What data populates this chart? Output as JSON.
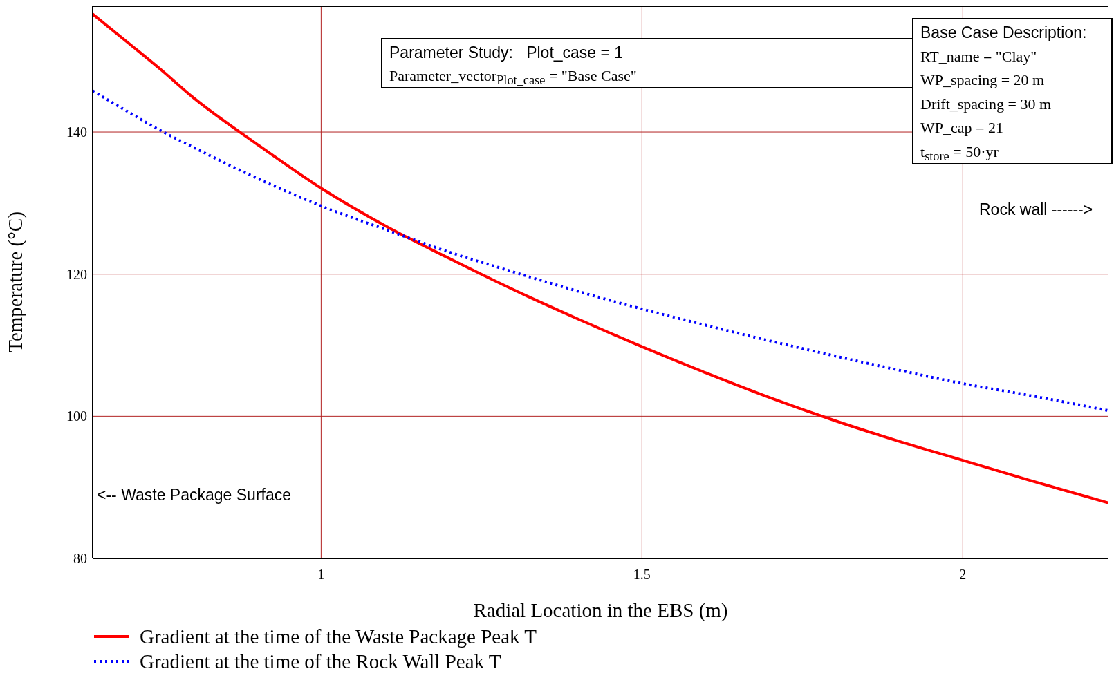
{
  "chart_data": {
    "type": "line",
    "xlabel": "Radial Location in the EBS (m)",
    "ylabel": "Temperature (°C)",
    "x": [
      0.644,
      0.7,
      0.75,
      0.8,
      0.9,
      1,
      1.1,
      1.2,
      1.3,
      1.4,
      1.5,
      1.6,
      1.7,
      1.8,
      1.9,
      2,
      2.1,
      2.227
    ],
    "series": [
      {
        "name": "Gradient at the time of the Waste Package Peak T",
        "color": "#ff0000",
        "line_style": "solid",
        "values": [
          156.6,
          152.5,
          148.8,
          144.9,
          138.3,
          132.1,
          126.8,
          122.2,
          117.8,
          113.7,
          109.8,
          106.1,
          102.6,
          99.4,
          96.5,
          93.8,
          91.1,
          87.8
        ]
      },
      {
        "name": "Gradient at the time of the Rock Wall Peak T",
        "color": "#0000ff",
        "line_style": "dotted",
        "values": [
          145.8,
          142.8,
          140.2,
          137.9,
          133.5,
          129.6,
          126.3,
          123.1,
          120.3,
          117.6,
          115.1,
          112.8,
          110.6,
          108.5,
          106.5,
          104.6,
          103.0,
          100.8
        ]
      }
    ],
    "xlim": [
      0.644,
      2.227
    ],
    "xticks": [
      1,
      1.5,
      2
    ],
    "ylim": [
      80,
      157.8
    ],
    "yticks": [
      80,
      100,
      120,
      140
    ],
    "grid": true,
    "legend": "bottom left",
    "marker": "none",
    "annotations": [
      "Parameter Study:   Plot_case = 1",
      "Parameter_vector$_{Plot_case}$ = \"Base Case\"",
      "Base Case Description:",
      "RT_name = \"Clay\"",
      "WP_spacing = 20 m",
      "Drift_spacing = 30 m",
      "WP_cap = 21",
      "t$_{store}$ = 50·yr",
      "Rock wall ------>",
      "<-- Waste Package Surface"
    ]
  }
}
